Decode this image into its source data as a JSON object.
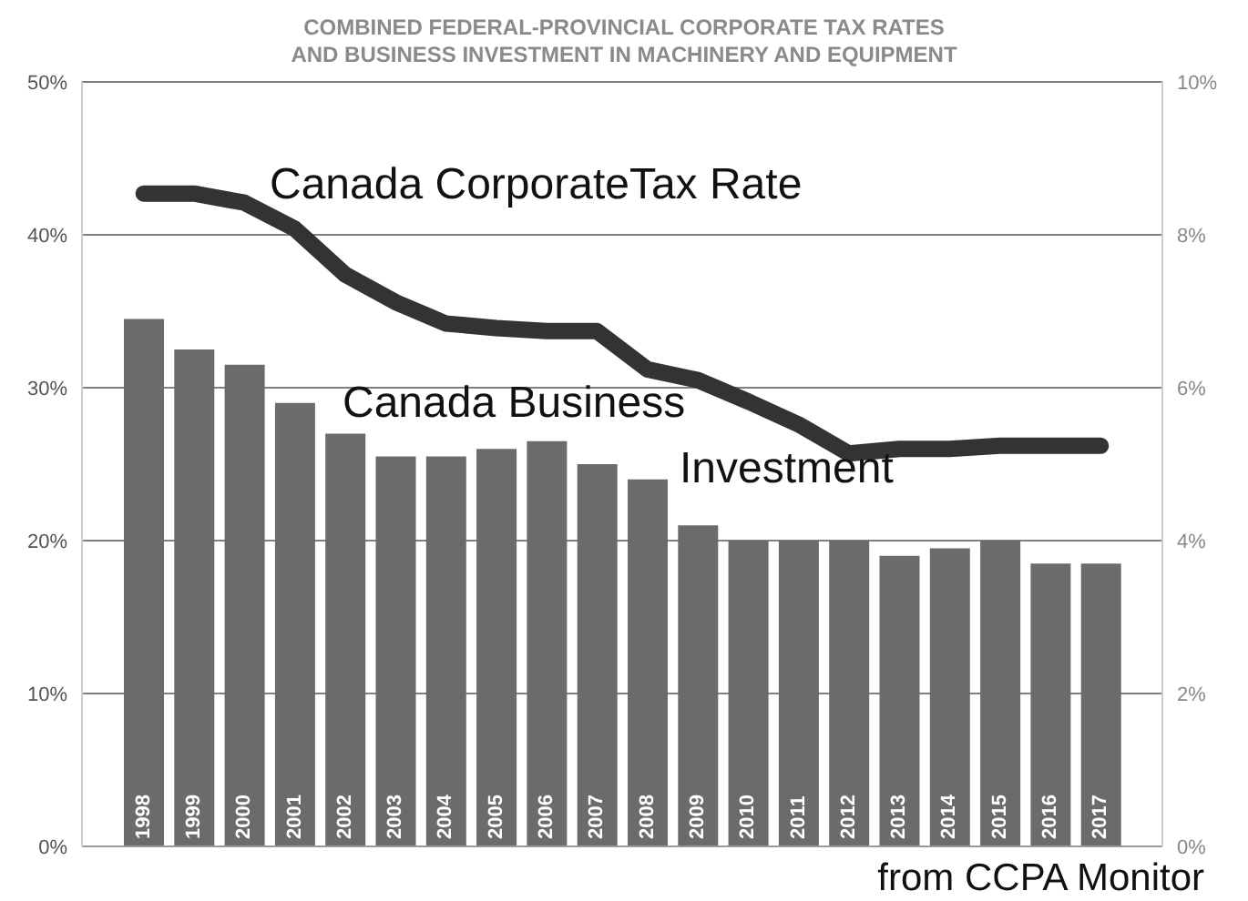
{
  "chart_data": {
    "type": "bar",
    "title": "COMBINED FEDERAL-PROVINCIAL CORPORATE TAX RATES\nAND BUSINESS INVESTMENT IN MACHINERY AND EQUIPMENT",
    "categories": [
      "1998",
      "1999",
      "2000",
      "2001",
      "2002",
      "2003",
      "2004",
      "2005",
      "2006",
      "2007",
      "2008",
      "2009",
      "2010",
      "2011",
      "2012",
      "2013",
      "2014",
      "2015",
      "2016",
      "2017"
    ],
    "series": [
      {
        "name": "Canada Business Investment",
        "axis": "y2",
        "color": "#6b6b6b",
        "values": [
          6.9,
          6.5,
          6.3,
          5.8,
          5.4,
          5.1,
          5.1,
          5.2,
          5.3,
          5.0,
          4.8,
          4.2,
          4.0,
          4.0,
          4.0,
          3.8,
          3.9,
          4.0,
          3.7,
          3.7
        ]
      },
      {
        "name": "Canada CorporateTax Rate",
        "type": "line",
        "axis": "y",
        "color": "#333333",
        "values": [
          42.7,
          42.7,
          42.1,
          40.4,
          37.4,
          35.6,
          34.2,
          33.9,
          33.7,
          33.7,
          31.2,
          30.5,
          29.1,
          27.6,
          25.7,
          26.0,
          26.0,
          26.2,
          26.2,
          26.2
        ]
      }
    ],
    "ylim": [
      0,
      50
    ],
    "yticks": [
      {
        "value": 0,
        "label": "0%"
      },
      {
        "value": 10,
        "label": "10%"
      },
      {
        "value": 20,
        "label": "20%"
      },
      {
        "value": 30,
        "label": "30%"
      },
      {
        "value": 40,
        "label": "40%"
      },
      {
        "value": 50,
        "label": "50%"
      }
    ],
    "y2lim": [
      0,
      10
    ],
    "y2ticks": [
      {
        "value": 0,
        "label": "0%"
      },
      {
        "value": 2,
        "label": "2%"
      },
      {
        "value": 4,
        "label": "4%"
      },
      {
        "value": 6,
        "label": "6%"
      },
      {
        "value": 8,
        "label": "8%"
      },
      {
        "value": 10,
        "label": "10%"
      }
    ],
    "grid": "y",
    "marker": "none",
    "line_style": "solid",
    "annotations": [
      "from CCPA Monitor"
    ]
  }
}
